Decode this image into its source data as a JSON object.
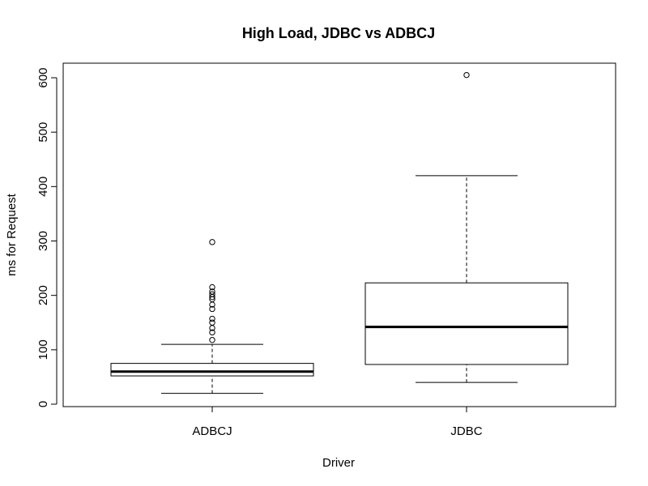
{
  "chart_data": {
    "type": "box",
    "title": "High Load, JDBC vs ADBCJ",
    "xlabel": "Driver",
    "ylabel": "ms for Request",
    "ylim": [
      0,
      620
    ],
    "yticks": [
      0,
      100,
      200,
      300,
      400,
      500,
      600
    ],
    "ytick_labels": [
      "0",
      "100",
      "200",
      "300",
      "400",
      "500",
      "600"
    ],
    "categories": [
      "ADBCJ",
      "JDBC"
    ],
    "boxes": [
      {
        "name": "ADBCJ",
        "whisker_low": 20,
        "q1": 52,
        "median": 60,
        "q3": 75,
        "whisker_high": 110,
        "outliers": [
          118,
          132,
          140,
          150,
          157,
          175,
          183,
          193,
          197,
          202,
          207,
          215,
          298
        ]
      },
      {
        "name": "JDBC",
        "whisker_low": 40,
        "q1": 73,
        "median": 142,
        "q3": 223,
        "whisker_high": 420,
        "outliers": [
          605
        ]
      }
    ],
    "grid": false,
    "legend": "none"
  }
}
